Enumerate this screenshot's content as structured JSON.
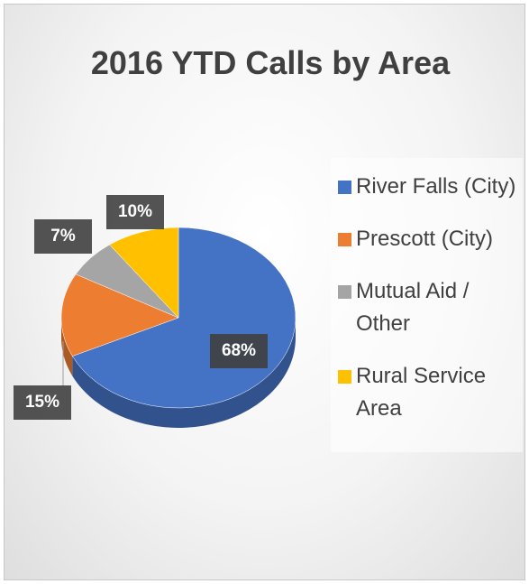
{
  "chart_data": {
    "type": "pie",
    "title": "2016 YTD Calls by Area",
    "categories": [
      "River Falls (City)",
      "Prescott (City)",
      "Mutual Aid / Other",
      "Rural Service Area"
    ],
    "values": [
      68,
      15,
      7,
      10
    ],
    "value_labels": [
      "68%",
      "15%",
      "7%",
      "10%"
    ],
    "colors": [
      "#4472c4",
      "#ed7d31",
      "#a5a5a5",
      "#ffc000"
    ],
    "legend": "right"
  }
}
